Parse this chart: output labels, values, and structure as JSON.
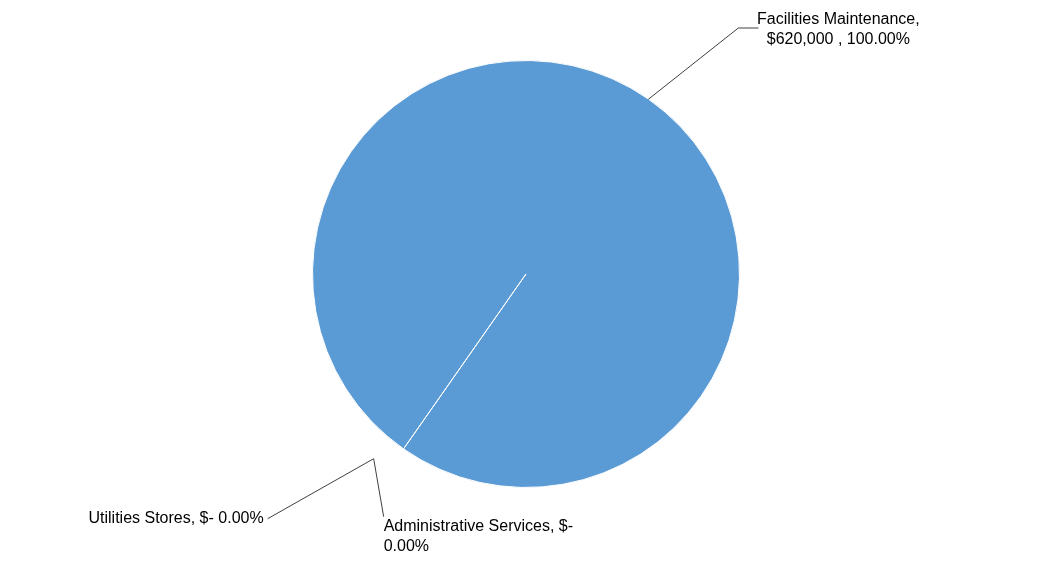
{
  "chart_data": {
    "type": "pie",
    "categories": [
      "Facilities Maintenance",
      "Utilities Stores",
      "Administrative Services"
    ],
    "values": [
      620000,
      0,
      0
    ],
    "colors": [
      "#5b9bd5",
      "#808080",
      "#a5a5a5"
    ],
    "value_labels": [
      ",\n$620,000 , 100.00%",
      ", $- 0.00%",
      ", $-\n0.00%"
    ],
    "legend": false
  }
}
